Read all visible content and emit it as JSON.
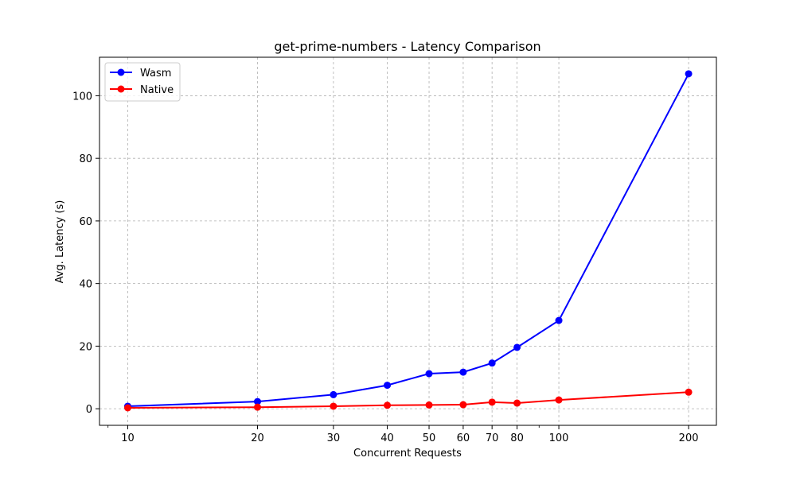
{
  "chart_data": {
    "type": "line",
    "title": "get-prime-numbers - Latency Comparison",
    "xlabel": "Concurrent Requests",
    "ylabel": "Avg. Latency (s)",
    "x_scale": "log",
    "xlim": [
      8.6,
      232
    ],
    "ylim": [
      -5.3,
      112.3
    ],
    "x_ticks": [
      10,
      20,
      30,
      40,
      50,
      60,
      70,
      80,
      100,
      200
    ],
    "x_tick_labels": [
      "10",
      "20",
      "30",
      "40",
      "50",
      "60",
      "70",
      "80",
      "100",
      "200"
    ],
    "y_ticks": [
      0,
      20,
      40,
      60,
      80,
      100
    ],
    "y_tick_labels": [
      "0",
      "20",
      "40",
      "60",
      "80",
      "100"
    ],
    "grid": true,
    "legend_position": "top-left",
    "x": [
      10,
      20,
      30,
      40,
      50,
      60,
      70,
      80,
      100,
      200
    ],
    "series": [
      {
        "name": "Wasm",
        "color": "#0000ff",
        "marker": "circle",
        "values": [
          0.8,
          2.3,
          4.5,
          7.5,
          11.2,
          11.7,
          14.6,
          19.6,
          28.2,
          107.0
        ]
      },
      {
        "name": "Native",
        "color": "#ff0000",
        "marker": "circle",
        "values": [
          0.3,
          0.5,
          0.8,
          1.1,
          1.2,
          1.3,
          2.1,
          1.8,
          2.8,
          5.3
        ]
      }
    ]
  }
}
